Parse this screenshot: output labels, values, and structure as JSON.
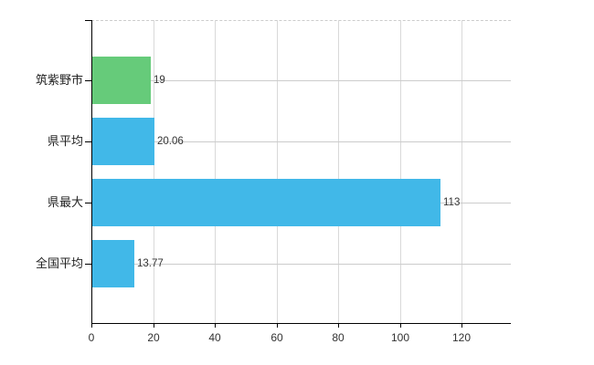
{
  "chart_data": {
    "type": "bar",
    "orientation": "horizontal",
    "title": "",
    "xlabel": "",
    "ylabel": "",
    "categories": [
      "筑紫野市",
      "県平均",
      "県最大",
      "全国平均"
    ],
    "values": [
      19,
      20.06,
      113,
      13.77
    ],
    "value_labels": [
      "19",
      "20.06",
      "113",
      "13.77"
    ],
    "bar_colors": [
      "#66cb7a",
      "#41b8e8",
      "#41b8e8",
      "#41b8e8"
    ],
    "xticks": [
      0,
      20,
      40,
      60,
      80,
      100,
      120
    ],
    "xtick_labels": [
      "0",
      "20",
      "40",
      "60",
      "80",
      "100",
      "120"
    ],
    "xlim": [
      0,
      136
    ],
    "grid": true,
    "legend": false
  },
  "colors": {
    "axis": "#000000",
    "gridline_vertical": "#d9d9d9",
    "gridline_horizontal": "#cccccc",
    "top_border": "#cccccc",
    "text": "#333333",
    "background": "#ffffff"
  }
}
